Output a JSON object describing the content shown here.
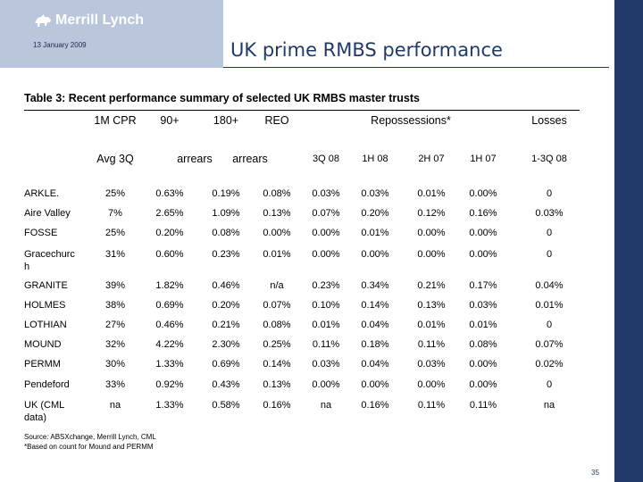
{
  "header": {
    "brand": "Merrill Lynch",
    "date": "13 January 2009",
    "title": "UK prime RMBS performance",
    "colors": {
      "logo_box": "#b9c6dc",
      "accent": "#1f3a68"
    }
  },
  "table": {
    "title": "Table 3: Recent performance summary of selected UK RMBS master trusts",
    "header_row1": [
      "1M CPR",
      "90+",
      "180+",
      "REO",
      "Repossessions*",
      "Losses"
    ],
    "header_row2": [
      "Avg 3Q",
      "arrears",
      "arrears",
      "3Q 08",
      "1H 08",
      "2H 07",
      "1H 07",
      "1-3Q 08"
    ],
    "rows": [
      {
        "name": "ARKLE.",
        "values": [
          "25%",
          "0.63%",
          "0.19%",
          "0.08%",
          "0.03%",
          "0.03%",
          "0.01%",
          "0.00%",
          "0"
        ]
      },
      {
        "name": "Aire Valley",
        "values": [
          "7%",
          "2.65%",
          "1.09%",
          "0.13%",
          "0.07%",
          "0.20%",
          "0.12%",
          "0.16%",
          "0.03%"
        ]
      },
      {
        "name": "FOSSE",
        "values": [
          "25%",
          "0.20%",
          "0.08%",
          "0.00%",
          "0.00%",
          "0.01%",
          "0.00%",
          "0.00%",
          "0"
        ]
      },
      {
        "name": "Gracechurch",
        "values": [
          "31%",
          "0.60%",
          "0.23%",
          "0.01%",
          "0.00%",
          "0.00%",
          "0.00%",
          "0.00%",
          "0"
        ]
      },
      {
        "name": "GRANITE",
        "values": [
          "39%",
          "1.82%",
          "0.46%",
          "n/a",
          "0.23%",
          "0.34%",
          "0.21%",
          "0.17%",
          "0.04%"
        ]
      },
      {
        "name": "HOLMES",
        "values": [
          "38%",
          "0.69%",
          "0.20%",
          "0.07%",
          "0.10%",
          "0.14%",
          "0.13%",
          "0.03%",
          "0.01%"
        ]
      },
      {
        "name": "LOTHIAN",
        "values": [
          "27%",
          "0.46%",
          "0.21%",
          "0.08%",
          "0.01%",
          "0.04%",
          "0.01%",
          "0.01%",
          "0"
        ]
      },
      {
        "name": "MOUND",
        "values": [
          "32%",
          "4.22%",
          "2.30%",
          "0.25%",
          "0.11%",
          "0.18%",
          "0.11%",
          "0.08%",
          "0.07%"
        ]
      },
      {
        "name": "PERMM",
        "values": [
          "30%",
          "1.33%",
          "0.69%",
          "0.14%",
          "0.03%",
          "0.04%",
          "0.03%",
          "0.00%",
          "0.02%"
        ]
      },
      {
        "name": "Pendeford",
        "values": [
          "33%",
          "0.92%",
          "0.43%",
          "0.13%",
          "0.00%",
          "0.00%",
          "0.00%",
          "0.00%",
          "0"
        ]
      },
      {
        "name": "UK (CML data)",
        "values": [
          "na",
          "1.33%",
          "0.58%",
          "0.16%",
          "na",
          "0.16%",
          "0.11%",
          "0.11%",
          "na"
        ]
      }
    ]
  },
  "footer": {
    "source": "Source: ABSXchange, Merrill Lynch, CML",
    "note": "*Based on count for Mound and PERMM",
    "page": "35"
  }
}
